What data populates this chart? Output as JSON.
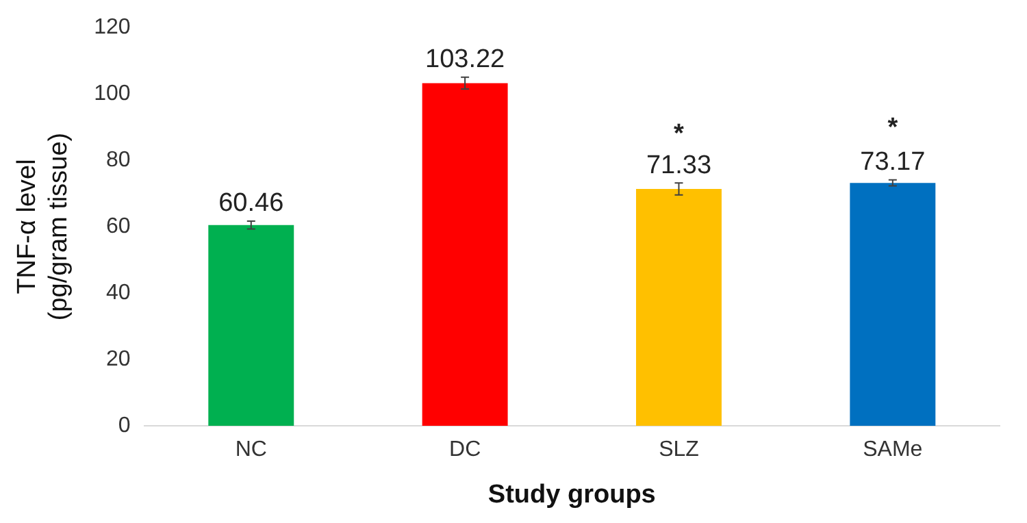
{
  "chart_data": {
    "type": "bar",
    "xlabel": "Study groups",
    "ylabel": "TNF-α level\n(pg/gram tissue)",
    "categories": [
      "NC",
      "DC",
      "SLZ",
      "SAMe"
    ],
    "values": [
      60.46,
      103.22,
      71.33,
      73.17
    ],
    "colors": [
      "#00b050",
      "#ff0000",
      "#ffc000",
      "#0070c0"
    ],
    "errors": [
      1.2,
      1.8,
      1.8,
      0.9
    ],
    "data_labels": true,
    "annotations": [
      {
        "text": "*",
        "x": "SLZ",
        "y": 71.33
      },
      {
        "text": "*",
        "x": "SAMe",
        "y": 73.17
      }
    ],
    "ylim": [
      0,
      120
    ],
    "yticks": [
      0,
      20,
      40,
      60,
      80,
      100,
      120
    ],
    "grid": false,
    "legend": false
  }
}
